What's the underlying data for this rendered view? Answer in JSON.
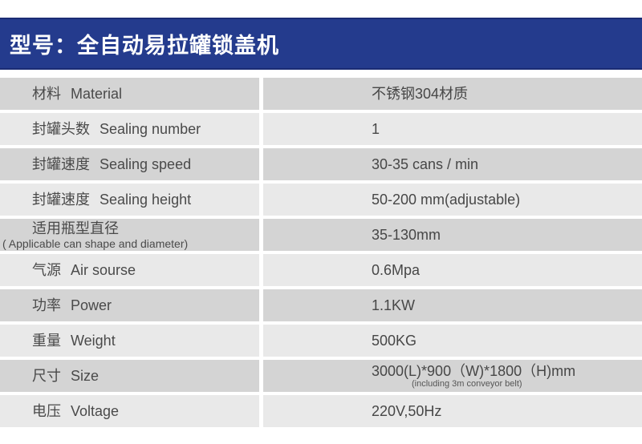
{
  "header": {
    "title": "型号：全自动易拉罐锁盖机"
  },
  "colors": {
    "title_bar_bg": "#243b8d",
    "title_bar_border": "#1b2c74",
    "row_dark": "#d4d4d4",
    "row_light": "#e9e9e9",
    "text": "#4a4a4a"
  },
  "table": {
    "rows": [
      {
        "label_zh": "材料",
        "label_en": "Material",
        "value": "不锈钢304材质"
      },
      {
        "label_zh": "封罐头数",
        "label_en": "Sealing number",
        "value": "1"
      },
      {
        "label_zh": "封罐速度",
        "label_en": "Sealing speed",
        "value": "30-35 cans / min"
      },
      {
        "label_zh": "封罐速度",
        "label_en": "Sealing height",
        "value": "50-200 mm(adjustable)"
      },
      {
        "label_zh": "适用瓶型直径",
        "label_sub": "( Applicable can shape and diameter)",
        "value": "35-130mm"
      },
      {
        "label_zh": "气源",
        "label_en": "Air sourse",
        "value": "0.6Mpa"
      },
      {
        "label_zh": "功率",
        "label_en": "Power",
        "value": "1.1KW"
      },
      {
        "label_zh": "重量",
        "label_en": "Weight",
        "value": "500KG"
      },
      {
        "label_zh": "尺寸",
        "label_en": "Size",
        "value": "3000(L)*900（W)*1800（H)mm",
        "value_sub": "(including 3m conveyor belt)"
      },
      {
        "label_zh": "电压",
        "label_en": "Voltage",
        "value": "220V,50Hz"
      }
    ]
  }
}
